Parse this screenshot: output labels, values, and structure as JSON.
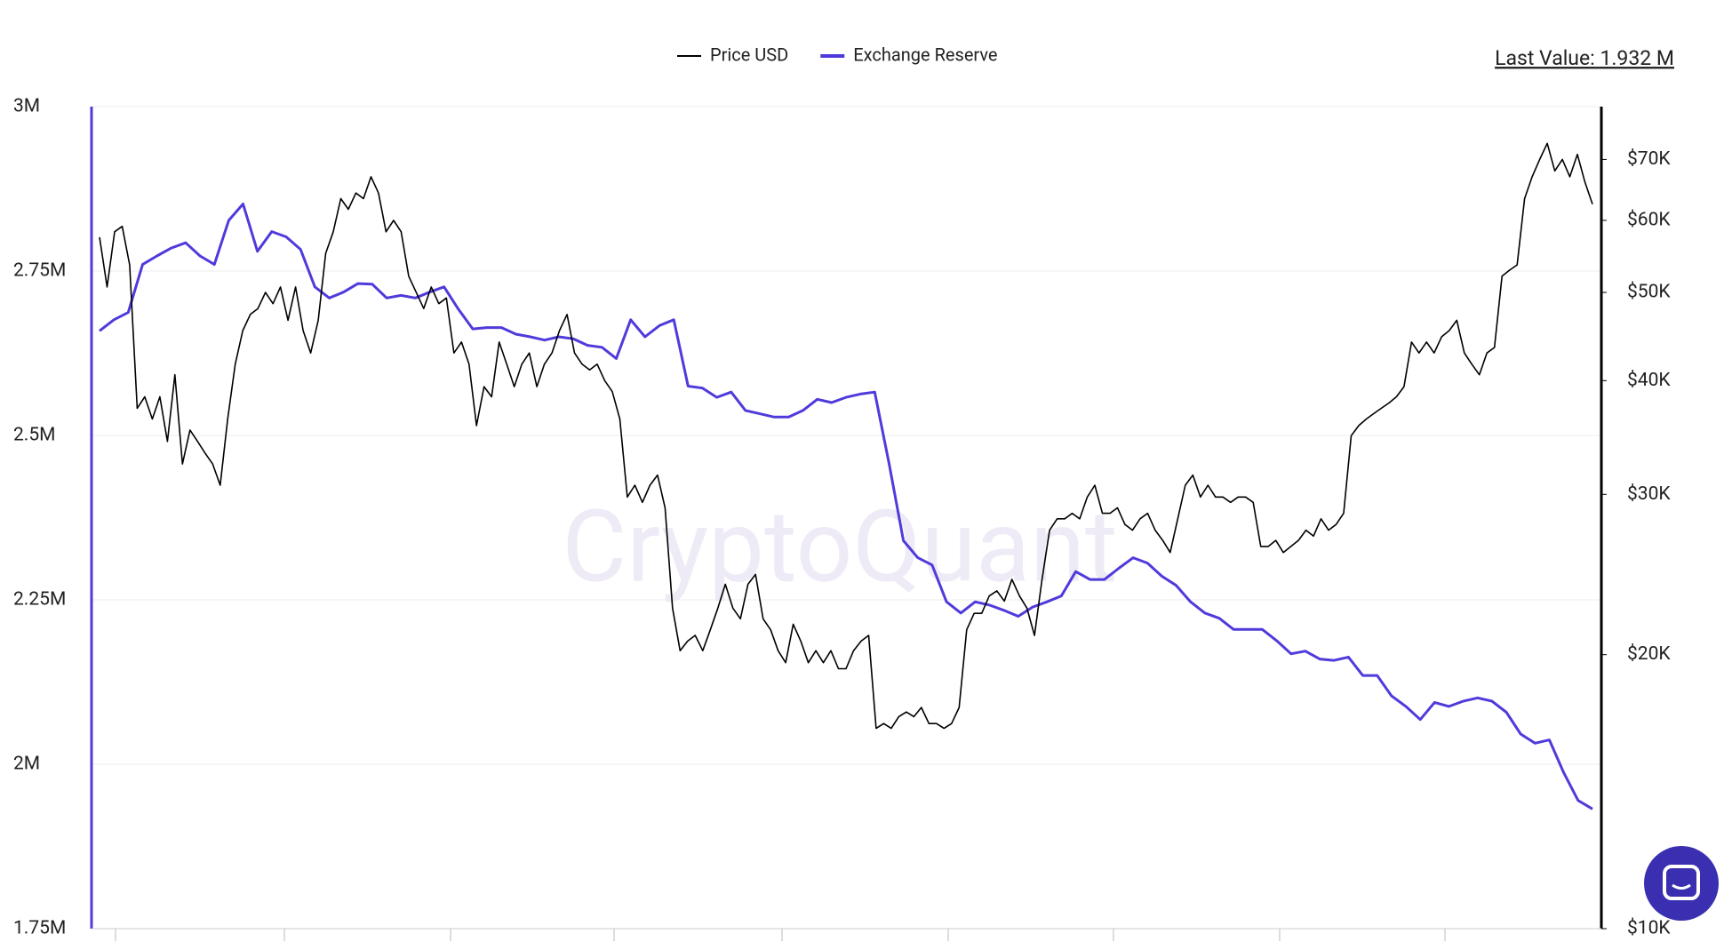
{
  "chart_data": {
    "type": "line",
    "watermark": "CryptoQuant",
    "annotation": "Last Value: 1.932 M",
    "ylim": [
      1750000,
      3000000
    ],
    "yticks": [
      {
        "value": 1750000,
        "label": "1.75M"
      },
      {
        "value": 2000000,
        "label": "2M"
      },
      {
        "value": 2250000,
        "label": "2.25M"
      },
      {
        "value": 2500000,
        "label": "2.5M"
      },
      {
        "value": 2750000,
        "label": "2.75M"
      },
      {
        "value": 3000000,
        "label": "3M"
      }
    ],
    "y2lim": [
      10000,
      80000
    ],
    "y2scale": "log",
    "y2ticks": [
      {
        "value": 10000,
        "label": "$10K"
      },
      {
        "value": 20000,
        "label": "$20K"
      },
      {
        "value": 30000,
        "label": "$30K"
      },
      {
        "value": 40000,
        "label": "$40K"
      },
      {
        "value": 50000,
        "label": "$50K"
      },
      {
        "value": 60000,
        "label": "$60K"
      },
      {
        "value": 70000,
        "label": "$70K"
      }
    ],
    "grid": true,
    "legend": "top",
    "series": [
      {
        "name": "Price USD",
        "color": "#000000",
        "axis": "y2",
        "values": [
          57500,
          50700,
          58300,
          59100,
          53600,
          37300,
          38400,
          36300,
          38400,
          34300,
          40600,
          32400,
          35300,
          34300,
          33300,
          32400,
          30700,
          36300,
          41700,
          45400,
          47300,
          48000,
          50000,
          48600,
          50700,
          46600,
          50700,
          45400,
          42900,
          46600,
          55200,
          58300,
          63400,
          61700,
          64300,
          63400,
          67000,
          64300,
          58300,
          60000,
          58300,
          52100,
          50000,
          48000,
          50700,
          48600,
          49300,
          42900,
          44100,
          41700,
          35700,
          39400,
          38400,
          44100,
          41700,
          39400,
          41700,
          42900,
          39400,
          41700,
          42900,
          45400,
          47300,
          42900,
          41700,
          41100,
          41700,
          40000,
          38900,
          36300,
          29800,
          30700,
          29400,
          30700,
          31500,
          29000,
          22500,
          20200,
          20700,
          21000,
          20200,
          21300,
          22500,
          23900,
          22500,
          21900,
          23900,
          24500,
          21900,
          21300,
          20200,
          19600,
          21600,
          20700,
          19600,
          20200,
          19600,
          20200,
          19300,
          19300,
          20200,
          20700,
          21000,
          16600,
          16800,
          16600,
          17100,
          17300,
          17100,
          17500,
          16800,
          16800,
          16600,
          16800,
          17500,
          21300,
          22200,
          22200,
          23200,
          23500,
          22900,
          24200,
          23200,
          22500,
          21000,
          24200,
          27400,
          28200,
          28200,
          28600,
          28200,
          29800,
          30700,
          28600,
          28600,
          29000,
          27800,
          27400,
          28200,
          28600,
          27400,
          26700,
          25900,
          28200,
          30700,
          31500,
          29800,
          30700,
          29800,
          29800,
          29400,
          29800,
          29800,
          29400,
          26300,
          26300,
          26700,
          25900,
          26300,
          26700,
          27400,
          27000,
          28200,
          27400,
          27800,
          28600,
          34800,
          35700,
          36300,
          36800,
          37300,
          37800,
          38400,
          39400,
          44100,
          42900,
          44100,
          42900,
          44700,
          45400,
          46600,
          42900,
          41700,
          40600,
          42900,
          43500,
          52100,
          52900,
          53600,
          63400,
          67000,
          70000,
          72900,
          68000,
          70000,
          67000,
          70900,
          66100,
          62500
        ]
      },
      {
        "name": "Exchange Reserve",
        "color": "#4f3bdb",
        "values": [
          2659000,
          2676000,
          2687000,
          2760000,
          2773000,
          2785000,
          2793000,
          2773000,
          2760000,
          2827000,
          2852000,
          2780000,
          2810000,
          2802000,
          2783000,
          2726000,
          2709000,
          2718000,
          2731000,
          2730000,
          2709000,
          2713000,
          2709000,
          2718000,
          2726000,
          2692000,
          2662000,
          2664000,
          2664000,
          2654000,
          2650000,
          2645000,
          2650000,
          2647000,
          2637000,
          2634000,
          2617000,
          2676000,
          2650000,
          2667000,
          2676000,
          2575000,
          2572000,
          2558000,
          2566000,
          2538000,
          2533000,
          2528000,
          2528000,
          2538000,
          2555000,
          2550000,
          2558000,
          2563000,
          2566000,
          2457000,
          2340000,
          2314000,
          2303000,
          2247000,
          2230000,
          2247000,
          2242000,
          2234000,
          2225000,
          2239000,
          2247000,
          2256000,
          2293000,
          2281000,
          2281000,
          2298000,
          2314000,
          2306000,
          2286000,
          2272000,
          2247000,
          2230000,
          2222000,
          2205000,
          2205000,
          2205000,
          2188000,
          2168000,
          2172000,
          2160000,
          2158000,
          2163000,
          2135000,
          2135000,
          2104000,
          2088000,
          2068000,
          2094000,
          2088000,
          2096000,
          2101000,
          2096000,
          2079000,
          2046000,
          2032000,
          2037000,
          1987000,
          1945000,
          1932000
        ]
      }
    ]
  }
}
